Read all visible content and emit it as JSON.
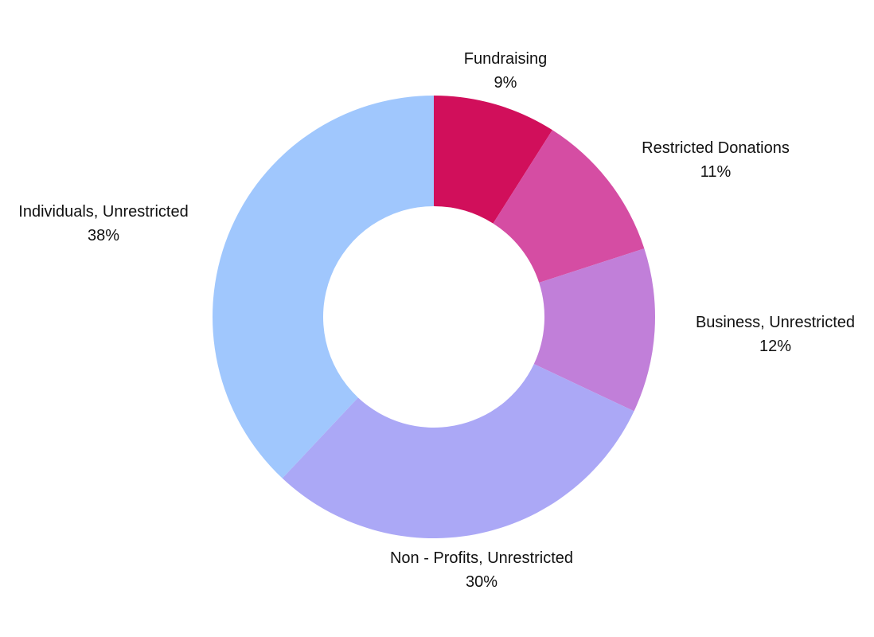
{
  "chart_data": {
    "type": "pie",
    "donut": true,
    "slices": [
      {
        "label": "Fundraising",
        "value": 9,
        "value_label": "9%",
        "color": "#d10f5b"
      },
      {
        "label": "Restricted Donations",
        "value": 11,
        "value_label": "11%",
        "color": "#d54da3"
      },
      {
        "label": "Business, Unrestricted",
        "value": 12,
        "value_label": "12%",
        "color": "#c17fd9"
      },
      {
        "label": "Non - Profits, Unrestricted",
        "value": 30,
        "value_label": "30%",
        "color": "#aba8f6"
      },
      {
        "label": "Individuals, Unrestricted",
        "value": 38,
        "value_label": "38%",
        "color": "#a0c7fd"
      }
    ]
  }
}
